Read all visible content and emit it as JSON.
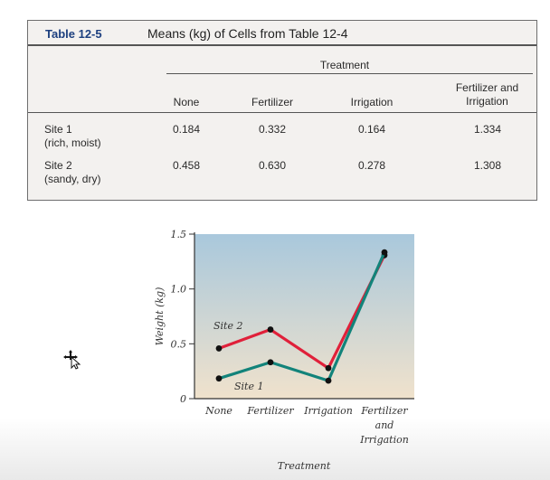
{
  "table": {
    "number": "Table 12-5",
    "title": "Means (kg) of Cells from Table 12-4",
    "group_label": "Treatment",
    "columns": [
      [
        "None"
      ],
      [
        "Fertilizer"
      ],
      [
        "Irrigation"
      ],
      [
        "Fertilizer and",
        "Irrigation"
      ]
    ],
    "rows": [
      {
        "label": [
          "Site 1",
          "(rich, moist)"
        ],
        "values": [
          "0.184",
          "0.332",
          "0.164",
          "1.334"
        ]
      },
      {
        "label": [
          "Site 2",
          "(sandy, dry)"
        ],
        "values": [
          "0.458",
          "0.630",
          "0.278",
          "1.308"
        ]
      }
    ]
  },
  "chart_data": {
    "type": "line",
    "categories": [
      "None",
      "Fertilizer",
      "Irrigation",
      "Fertilizer and Irrigation"
    ],
    "category_labels": [
      [
        "None"
      ],
      [
        "Fertilizer"
      ],
      [
        "Irrigation"
      ],
      [
        "Fertilizer",
        "and",
        "Irrigation"
      ]
    ],
    "series": [
      {
        "name": "Site 2",
        "values": [
          0.458,
          0.63,
          0.278,
          1.308
        ],
        "color": "#e0203a"
      },
      {
        "name": "Site 1",
        "values": [
          0.184,
          0.332,
          0.164,
          1.334
        ],
        "color": "#12837a"
      }
    ],
    "ylim": [
      0,
      1.5
    ],
    "yticks": [
      "0",
      "0.5",
      "1.0",
      "1.5"
    ],
    "ytick_values": [
      0,
      0.5,
      1.0,
      1.5
    ],
    "xlabel": "Treatment",
    "ylabel": "Weight (kg)",
    "grid": false,
    "plot_background": [
      "#a9c8dc",
      "#f0e2cc"
    ]
  }
}
